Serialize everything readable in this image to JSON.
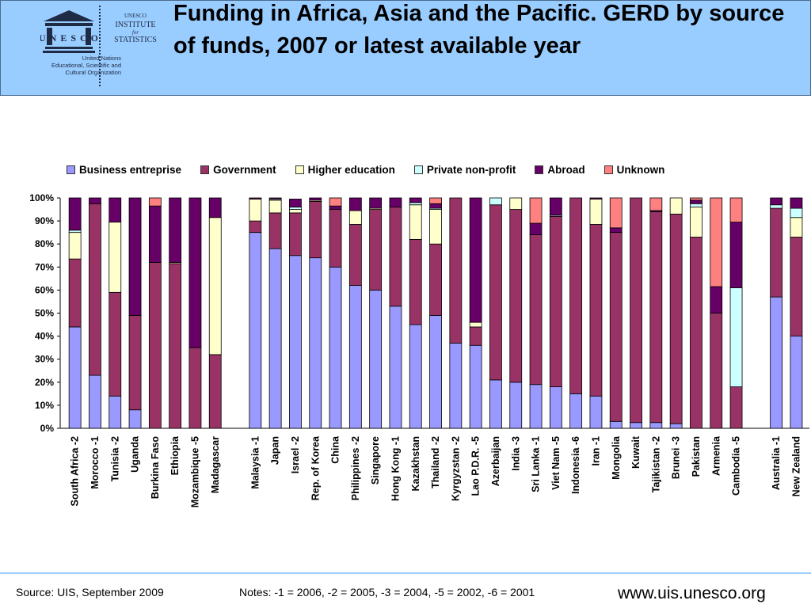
{
  "header": {
    "title": "Funding in Africa, Asia and the Pacific. GERD by source of funds, 2007 or latest available year",
    "unesco_logo_text": "UNESCO",
    "org_lines": [
      "United Nations",
      "Educational, Scientific and",
      "Cultural Organization"
    ],
    "uis_lines": [
      "UNESCO",
      "INSTITUTE",
      "for",
      "STATISTICS"
    ]
  },
  "legend": [
    {
      "name": "Business entreprise",
      "color": "#9999ff"
    },
    {
      "name": "Government",
      "color": "#993366"
    },
    {
      "name": "Higher education",
      "color": "#ffffcc"
    },
    {
      "name": "Private non-profit",
      "color": "#ccffff"
    },
    {
      "name": "Abroad",
      "color": "#660066"
    },
    {
      "name": "Unknown",
      "color": "#ff8080"
    }
  ],
  "chart_data": {
    "type": "bar",
    "stacked": true,
    "ylim": [
      0,
      100
    ],
    "y_ticks": [
      "0%",
      "10%",
      "20%",
      "30%",
      "40%",
      "50%",
      "60%",
      "70%",
      "80%",
      "90%",
      "100%"
    ],
    "groups": [
      [
        "South Africa -2",
        "Morocco -1",
        "Tunisia -2",
        "Uganda",
        "Burkina Faso",
        "Ethiopia",
        "Mozambique -5",
        "Madagascar"
      ],
      [
        "Malaysia -1",
        "Japan",
        "Israel -2",
        "Rep. of Korea",
        "China",
        "Philippines -2",
        "Singapore",
        "Hong Kong -1",
        "Kazakhstan",
        "Thailand -2",
        "Kyrgyzstan -2",
        "Lao P.D.R. -5",
        "Azerbaijan",
        "India -3",
        "Sri Lanka -1",
        "Viet Nam -5",
        "Indonesia -6",
        "Iran -1",
        "Mongolia",
        "Kuwait",
        "Tajikistan -2",
        "Brunei -3",
        "Pakistan",
        "Armenia",
        "Cambodia -5"
      ],
      [
        "Australia -1",
        "New Zealand"
      ]
    ],
    "categories": [
      "South Africa -2",
      "Morocco -1",
      "Tunisia -2",
      "Uganda",
      "Burkina Faso",
      "Ethiopia",
      "Mozambique -5",
      "Madagascar",
      "Malaysia -1",
      "Japan",
      "Israel -2",
      "Rep. of Korea",
      "China",
      "Philippines -2",
      "Singapore",
      "Hong Kong -1",
      "Kazakhstan",
      "Thailand -2",
      "Kyrgyzstan -2",
      "Lao P.D.R. -5",
      "Azerbaijan",
      "India -3",
      "Sri Lanka -1",
      "Viet Nam -5",
      "Indonesia -6",
      "Iran -1",
      "Mongolia",
      "Kuwait",
      "Tajikistan -2",
      "Brunei -3",
      "Pakistan",
      "Armenia",
      "Cambodia -5",
      "Australia -1",
      "New Zealand"
    ],
    "series": [
      {
        "name": "Business entreprise",
        "values": [
          44,
          23,
          14,
          8,
          0,
          0,
          0,
          0,
          85,
          78,
          75,
          74,
          70,
          62,
          60,
          53,
          45,
          49,
          37,
          36,
          21,
          20,
          19,
          18,
          15,
          14,
          3,
          2.5,
          2.5,
          2,
          0,
          0,
          0,
          57,
          40
        ]
      },
      {
        "name": "Government",
        "values": [
          29.5,
          74.5,
          45,
          41,
          72,
          71.5,
          35,
          32,
          5,
          15.5,
          18.5,
          24.5,
          25,
          26.5,
          35,
          43,
          37,
          31,
          63,
          8,
          76,
          75,
          65,
          74,
          85,
          74.5,
          82,
          97.5,
          91.5,
          91,
          83,
          50,
          18,
          38.5,
          43
        ]
      },
      {
        "name": "Higher education",
        "values": [
          11.5,
          0,
          30.5,
          0,
          0,
          0.5,
          0,
          59.5,
          9.5,
          5.5,
          1.5,
          0.5,
          0,
          6,
          0.5,
          0,
          15,
          15,
          0,
          2,
          0,
          5,
          0,
          0,
          0,
          11,
          0,
          0,
          0,
          7,
          13,
          0,
          0,
          0,
          8.5
        ]
      },
      {
        "name": "Private non-profit",
        "values": [
          1,
          0,
          0,
          0,
          0,
          0,
          0,
          0,
          0,
          0.5,
          1,
          0,
          0,
          0,
          0,
          0,
          1,
          0.5,
          0,
          0,
          3,
          0,
          0,
          0.5,
          0,
          0,
          0,
          0,
          0,
          0,
          1.5,
          0,
          43,
          1.5,
          4
        ]
      },
      {
        "name": "Abroad",
        "values": [
          14,
          2.5,
          10.5,
          51,
          24.5,
          28,
          65,
          8.5,
          0.5,
          0.5,
          3.5,
          1,
          1.5,
          5.5,
          4.5,
          4,
          2,
          2,
          0,
          54,
          0,
          0,
          5,
          7.5,
          0,
          0.5,
          2,
          0,
          0.5,
          0,
          1.5,
          11.5,
          28.5,
          3,
          4.5
        ]
      },
      {
        "name": "Unknown",
        "values": [
          0,
          0,
          0,
          0,
          3.5,
          0,
          0,
          0,
          0,
          0,
          0,
          0,
          3.5,
          0,
          0,
          0,
          0,
          2.5,
          0,
          0,
          0,
          0,
          11,
          0,
          0,
          0,
          13,
          0,
          5.5,
          0,
          1,
          38.5,
          10.5,
          0,
          0
        ]
      }
    ]
  },
  "footer": {
    "source": "Source: UIS, September 2009",
    "notes": "Notes: -1 = 2006, -2 = 2005, -3 = 2004, -5 = 2002, -6 = 2001",
    "website": "www.uis.unesco.org"
  }
}
